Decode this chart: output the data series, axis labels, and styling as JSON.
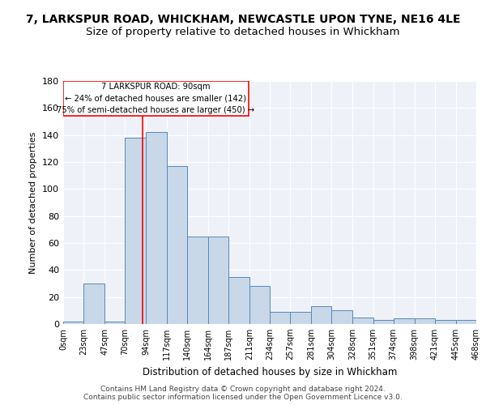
{
  "title": "7, LARKSPUR ROAD, WHICKHAM, NEWCASTLE UPON TYNE, NE16 4LE",
  "subtitle": "Size of property relative to detached houses in Whickham",
  "xlabel": "Distribution of detached houses by size in Whickham",
  "ylabel": "Number of detached properties",
  "bar_color": "#c8d8e8",
  "bar_edge_color": "#5588bb",
  "bin_edges": [
    0,
    23,
    47,
    70,
    94,
    117,
    140,
    164,
    187,
    211,
    234,
    257,
    281,
    304,
    328,
    351,
    374,
    398,
    421,
    445,
    468
  ],
  "bar_heights": [
    2,
    30,
    2,
    138,
    142,
    117,
    65,
    65,
    35,
    28,
    9,
    9,
    13,
    10,
    5,
    3,
    4,
    4,
    3,
    3
  ],
  "tick_labels": [
    "0sqm",
    "23sqm",
    "47sqm",
    "70sqm",
    "94sqm",
    "117sqm",
    "140sqm",
    "164sqm",
    "187sqm",
    "211sqm",
    "234sqm",
    "257sqm",
    "281sqm",
    "304sqm",
    "328sqm",
    "351sqm",
    "374sqm",
    "398sqm",
    "421sqm",
    "445sqm",
    "468sqm"
  ],
  "ylim": [
    0,
    180
  ],
  "yticks": [
    0,
    20,
    40,
    60,
    80,
    100,
    120,
    140,
    160,
    180
  ],
  "red_line_x": 90,
  "annotation_text": "7 LARKSPUR ROAD: 90sqm\n← 24% of detached houses are smaller (142)\n75% of semi-detached houses are larger (450) →",
  "footer_text": "Contains HM Land Registry data © Crown copyright and database right 2024.\nContains public sector information licensed under the Open Government Licence v3.0.",
  "bg_color": "#eef2f8",
  "grid_color": "#ffffff",
  "title_fontsize": 10,
  "subtitle_fontsize": 9.5
}
